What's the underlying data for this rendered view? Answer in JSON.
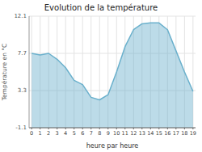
{
  "chart_data": {
    "type": "area",
    "title": "Evolution de la température",
    "xlabel": "heure par heure",
    "ylabel": "Température en °C",
    "x": [
      0,
      1,
      2,
      3,
      4,
      5,
      6,
      7,
      8,
      9,
      10,
      11,
      12,
      13,
      14,
      15,
      16,
      17,
      18,
      19
    ],
    "values": [
      7.7,
      7.5,
      7.7,
      7.0,
      6.0,
      4.5,
      4.0,
      2.5,
      2.2,
      2.8,
      5.5,
      8.5,
      10.5,
      11.2,
      11.3,
      11.3,
      10.5,
      8.0,
      5.5,
      3.2
    ],
    "color": "#6ab0cc",
    "xlim": [
      -0.3,
      19.3
    ],
    "xticks": [
      0,
      1,
      2,
      3,
      4,
      5,
      6,
      7,
      8,
      9,
      10,
      11,
      12,
      13,
      14,
      15,
      16,
      17,
      18,
      19
    ],
    "ylim": [
      -1.1,
      12.1
    ],
    "yticks": [
      -1.1,
      3.3,
      7.7,
      12.1
    ],
    "grid": true
  }
}
